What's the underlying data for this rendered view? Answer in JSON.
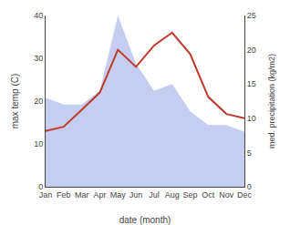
{
  "chart_data": {
    "type": "line",
    "categories": [
      "Jan",
      "Feb",
      "Mar",
      "Apr",
      "May",
      "Jun",
      "Jul",
      "Aug",
      "Sep",
      "Oct",
      "Nov",
      "Dec"
    ],
    "x_label": "date (month)",
    "y_label": "max temp (C)",
    "y2_label": "med. precipitation (kg/m2)",
    "series": [
      {
        "type": "area",
        "axis": "y2",
        "color": "#c5cef0",
        "values": [
          13,
          12,
          12,
          14,
          25,
          18,
          14,
          15,
          11,
          9,
          9,
          8
        ]
      },
      {
        "type": "line",
        "axis": "y",
        "color": "#c0392b",
        "values": [
          13,
          14,
          18,
          22,
          32,
          28,
          33,
          36,
          31,
          21,
          17,
          16
        ]
      }
    ],
    "ylim": [
      0,
      40
    ],
    "yticks": [
      0,
      10,
      20,
      30,
      40
    ],
    "y2lim": [
      0,
      25
    ],
    "y2ticks": [
      0,
      5,
      10,
      15,
      20,
      25
    ],
    "grid": false
  }
}
